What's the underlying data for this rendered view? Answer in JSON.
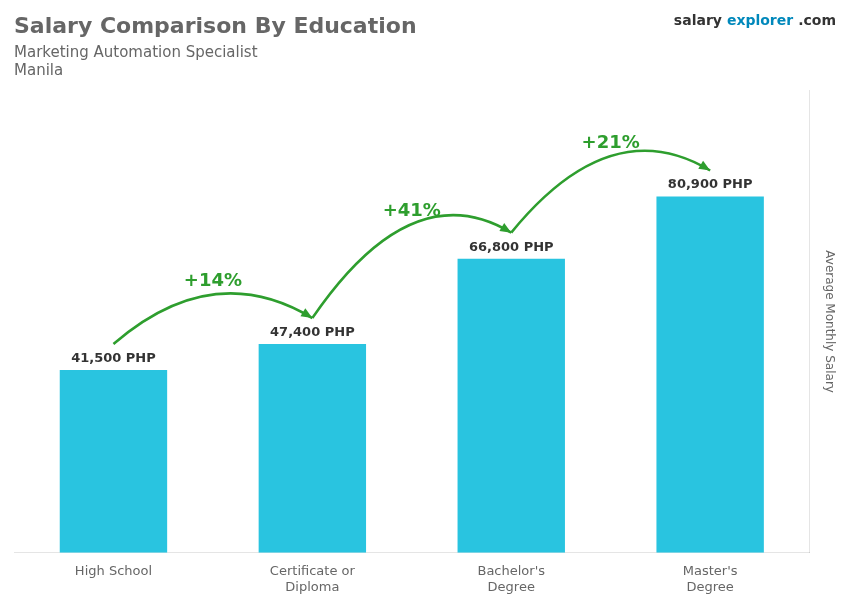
{
  "chart_data": {
    "type": "bar",
    "title": "Salary Comparison By Education",
    "subtitle": [
      "Marketing Automation Specialist",
      "Manila"
    ],
    "watermark": [
      "salary",
      "explorer",
      ".com"
    ],
    "ylabel": "Average Monthly Salary",
    "categories": [
      "High School",
      "Certificate or\nDiploma",
      "Bachelor's\nDegree",
      "Master's\nDegree"
    ],
    "values": [
      41500,
      47400,
      66800,
      80900
    ],
    "value_labels": [
      "41,500 PHP",
      "47,400 PHP",
      "66,800 PHP",
      "80,900 PHP"
    ],
    "data_labels": true,
    "annotations": [
      "+14%",
      "+41%",
      "+21%"
    ],
    "color": "#29c4e0",
    "ylim": [
      0,
      105000
    ],
    "grid": false,
    "tick_labels": "x"
  }
}
